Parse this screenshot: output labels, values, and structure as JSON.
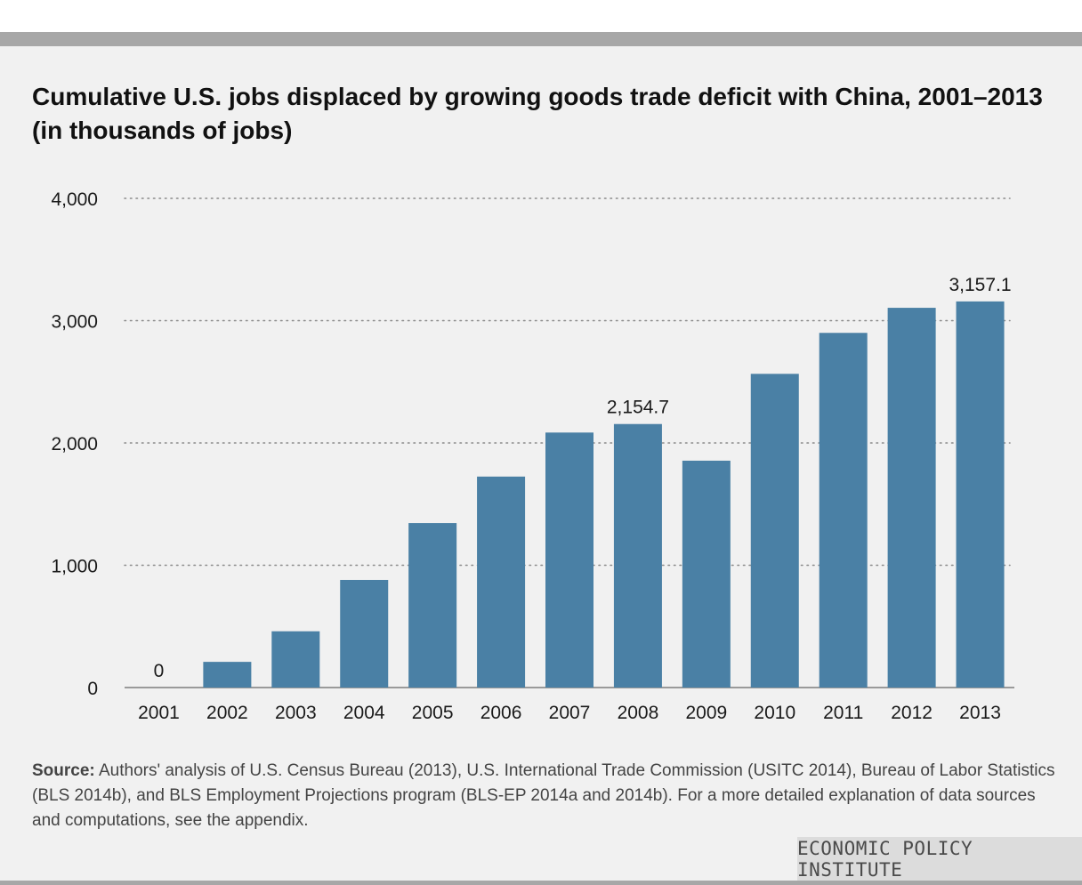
{
  "chart_data": {
    "type": "bar",
    "title": "Cumulative U.S. jobs displaced by growing goods trade deficit with China, 2001–2013 (in thousands of jobs)",
    "xlabel": "",
    "ylabel": "",
    "categories": [
      "2001",
      "2002",
      "2003",
      "2004",
      "2005",
      "2006",
      "2007",
      "2008",
      "2009",
      "2010",
      "2011",
      "2012",
      "2013"
    ],
    "values": [
      0,
      210,
      460,
      880,
      1345,
      1725,
      2085,
      2154.7,
      1855,
      2565,
      2900,
      3105,
      3157.1
    ],
    "ylim": [
      0,
      4000
    ],
    "yticks": [
      0,
      1000,
      2000,
      3000,
      4000
    ],
    "ytick_labels": [
      "0",
      "1,000",
      "2,000",
      "3,000",
      "4,000"
    ],
    "data_labels": [
      {
        "category": "2001",
        "text": "0"
      },
      {
        "category": "2008",
        "text": "2,154.7"
      },
      {
        "category": "2013",
        "text": "3,157.1"
      }
    ],
    "grid": "horizontal dotted",
    "legend": "none",
    "bar_color": "#4a80a5"
  },
  "source": {
    "label": "Source:",
    "text": "Authors' analysis of U.S. Census Bureau (2013), U.S. International Trade Commission (USITC 2014), Bureau of Labor Statistics (BLS 2014b), and BLS Employment Projections program (BLS-EP 2014a and 2014b).  For a more detailed explanation of data sources and computations, see the appendix."
  },
  "brand": "ECONOMIC POLICY INSTITUTE",
  "colors": {
    "panel": "#f1f1f1",
    "bars": "#a7a7a7",
    "brand_box": "#dcdcdc"
  }
}
